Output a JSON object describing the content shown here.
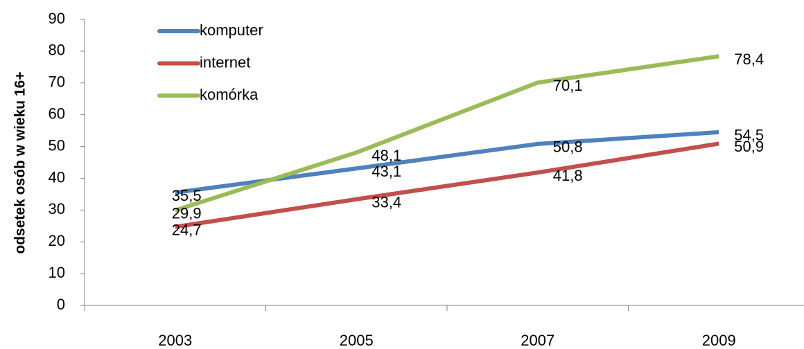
{
  "chart_data": {
    "type": "line",
    "y_label": "odsetek osób w wieku 16+",
    "categories": [
      "2003",
      "2005",
      "2007",
      "2009"
    ],
    "series": [
      {
        "name": "komputer",
        "color": "#4f81bd",
        "values": [
          35.5,
          43.1,
          50.8,
          54.5
        ],
        "value_labels": [
          "35,5",
          "43,1",
          "50,8",
          "54,5"
        ]
      },
      {
        "name": "internet",
        "color": "#c0504d",
        "values": [
          24.7,
          33.4,
          41.8,
          50.9
        ],
        "value_labels": [
          "24,7",
          "33,4",
          "41,8",
          "50,9"
        ]
      },
      {
        "name": "komórka",
        "color": "#9bbb59",
        "values": [
          29.9,
          48.1,
          70.1,
          78.4
        ],
        "value_labels": [
          "29,9",
          "48,1",
          "70,1",
          "78,4"
        ]
      }
    ],
    "ylim": [
      0,
      90
    ],
    "yticks": [
      0,
      10,
      20,
      30,
      40,
      50,
      60,
      70,
      80,
      90
    ],
    "legend": "upper left"
  }
}
